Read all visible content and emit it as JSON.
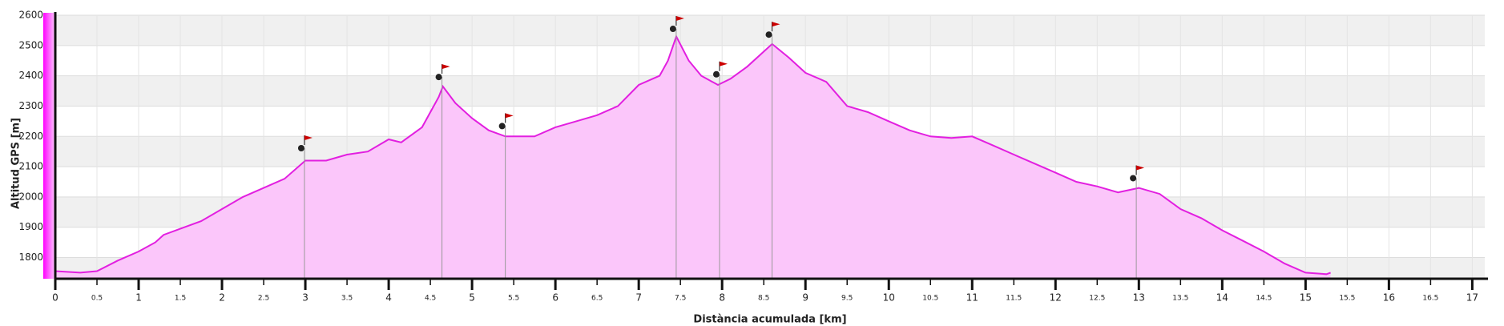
{
  "chart_data": {
    "type": "area",
    "xlabel": "Distància acumulada [km]",
    "ylabel": "Altitud GPS [m]",
    "line_color": "#e21fe0",
    "fill_color": "#fbc6fa",
    "grid": true,
    "xlim": [
      0,
      17.15
    ],
    "ylim": [
      1730,
      2600
    ],
    "xticks": [
      0,
      0.5,
      1,
      1.5,
      2,
      2.5,
      3,
      3.5,
      4,
      4.5,
      5,
      5.5,
      6,
      6.5,
      7,
      7.5,
      8,
      8.5,
      9,
      9.5,
      10,
      10.5,
      11,
      11.5,
      12,
      12.5,
      13,
      13.5,
      14,
      14.5,
      15,
      15.5,
      16,
      16.5,
      17
    ],
    "yticks": [
      1800,
      1900,
      2000,
      2100,
      2200,
      2300,
      2400,
      2500,
      2600
    ],
    "x": [
      0,
      0.3,
      0.5,
      0.75,
      1,
      1.2,
      1.3,
      1.5,
      1.75,
      2,
      2.25,
      2.5,
      2.75,
      3,
      3.25,
      3.5,
      3.75,
      4,
      4.15,
      4.4,
      4.6,
      4.65,
      4.8,
      5,
      5.2,
      5.4,
      5.6,
      5.75,
      6,
      6.25,
      6.5,
      6.75,
      7,
      7.25,
      7.35,
      7.45,
      7.6,
      7.75,
      7.95,
      8.1,
      8.3,
      8.6,
      8.8,
      9,
      9.25,
      9.5,
      9.75,
      10,
      10.25,
      10.5,
      10.75,
      11,
      11.25,
      11.5,
      11.75,
      12,
      12.25,
      12.5,
      12.75,
      13,
      13.25,
      13.5,
      13.75,
      14,
      14.25,
      14.5,
      14.75,
      15,
      15.25,
      15.3
    ],
    "values": [
      1755,
      1750,
      1755,
      1790,
      1820,
      1850,
      1875,
      1895,
      1920,
      1960,
      2000,
      2030,
      2060,
      2120,
      2120,
      2140,
      2150,
      2190,
      2180,
      2230,
      2330,
      2365,
      2310,
      2260,
      2220,
      2200,
      2200,
      2200,
      2230,
      2250,
      2270,
      2300,
      2370,
      2400,
      2450,
      2530,
      2450,
      2400,
      2370,
      2390,
      2430,
      2505,
      2460,
      2410,
      2380,
      2300,
      2280,
      2250,
      2220,
      2200,
      2195,
      2200,
      2170,
      2140,
      2110,
      2080,
      2050,
      2035,
      2015,
      2030,
      2010,
      1960,
      1930,
      1890,
      1855,
      1820,
      1780,
      1750,
      1745,
      1750
    ],
    "waypoints": {
      "x": [
        2.97,
        4.62,
        5.38,
        7.43,
        7.95,
        8.58,
        12.95
      ],
      "y": [
        2161,
        2396,
        2234,
        2555,
        2405,
        2536,
        2062
      ],
      "color": "#cc0000"
    }
  }
}
